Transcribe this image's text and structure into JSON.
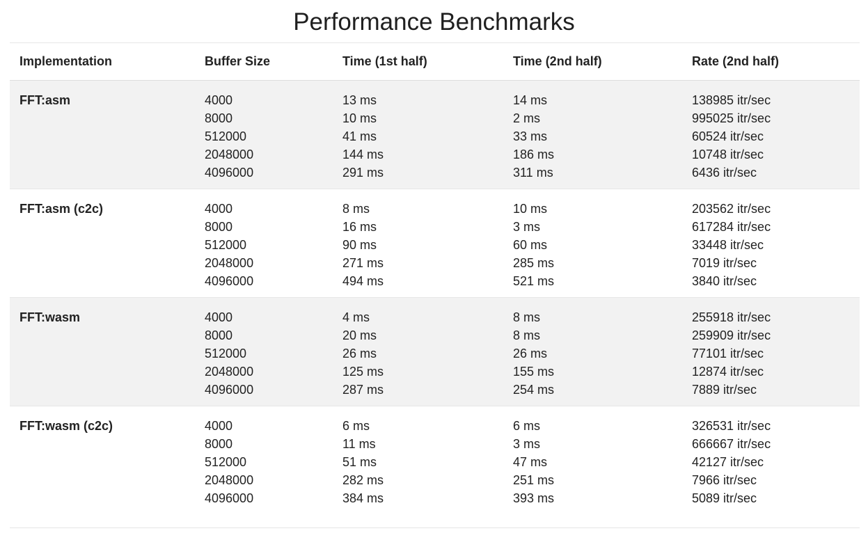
{
  "title": "Performance Benchmarks",
  "headers": [
    "Implementation",
    "Buffer Size",
    "Time (1st half)",
    "Time (2nd half)",
    "Rate (2nd half)"
  ],
  "groups": [
    {
      "implementation": "FFT:asm",
      "buffer_sizes": [
        "4000",
        "8000",
        "512000",
        "2048000",
        "4096000"
      ],
      "time_1st": [
        "13 ms",
        "10 ms",
        "41 ms",
        "144 ms",
        "291 ms"
      ],
      "time_2nd": [
        "14 ms",
        "2 ms",
        "33 ms",
        "186 ms",
        "311 ms"
      ],
      "rate_2nd": [
        "138985 itr/sec",
        "995025 itr/sec",
        "60524 itr/sec",
        "10748 itr/sec",
        "6436 itr/sec"
      ]
    },
    {
      "implementation": "FFT:asm (c2c)",
      "buffer_sizes": [
        "4000",
        "8000",
        "512000",
        "2048000",
        "4096000"
      ],
      "time_1st": [
        "8 ms",
        "16 ms",
        "90 ms",
        "271 ms",
        "494 ms"
      ],
      "time_2nd": [
        "10 ms",
        "3 ms",
        "60 ms",
        "285 ms",
        "521 ms"
      ],
      "rate_2nd": [
        "203562 itr/sec",
        "617284 itr/sec",
        "33448 itr/sec",
        "7019 itr/sec",
        "3840 itr/sec"
      ]
    },
    {
      "implementation": "FFT:wasm",
      "buffer_sizes": [
        "4000",
        "8000",
        "512000",
        "2048000",
        "4096000"
      ],
      "time_1st": [
        "4 ms",
        "20 ms",
        "26 ms",
        "125 ms",
        "287 ms"
      ],
      "time_2nd": [
        "8 ms",
        "8 ms",
        "26 ms",
        "155 ms",
        "254 ms"
      ],
      "rate_2nd": [
        "255918 itr/sec",
        "259909 itr/sec",
        "77101 itr/sec",
        "12874 itr/sec",
        "7889 itr/sec"
      ]
    },
    {
      "implementation": "FFT:wasm (c2c)",
      "buffer_sizes": [
        "4000",
        "8000",
        "512000",
        "2048000",
        "4096000"
      ],
      "time_1st": [
        "6 ms",
        "11 ms",
        "51 ms",
        "282 ms",
        "384 ms"
      ],
      "time_2nd": [
        "6 ms",
        "3 ms",
        "47 ms",
        "251 ms",
        "393 ms"
      ],
      "rate_2nd": [
        "326531 itr/sec",
        "666667 itr/sec",
        "42127 itr/sec",
        "7966 itr/sec",
        "5089 itr/sec"
      ]
    }
  ],
  "colors": {
    "shaded_row": "#f2f2f2",
    "text": "#222222",
    "divider": "#dddddd"
  }
}
